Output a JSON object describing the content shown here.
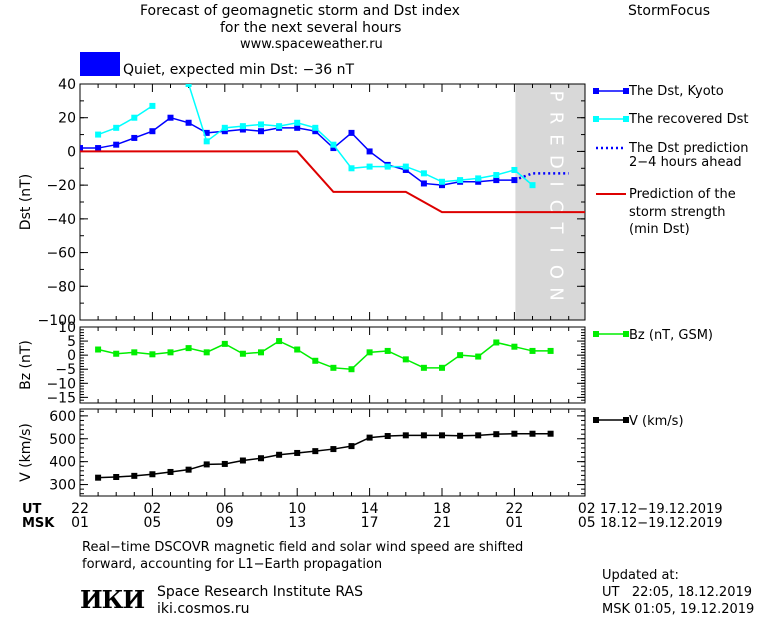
{
  "header": {
    "title_lines": [
      "Forecast of geomagnetic storm and Dst index",
      "for the next several hours",
      "www.spaceweather.ru"
    ],
    "brand": "StormFocus",
    "status_label": "Quiet, expected min Dst: −36 nT",
    "status_color": "#0000ff"
  },
  "colors": {
    "dst_kyoto": "#0000ff",
    "dst_recovered": "#00ffff",
    "dst_prediction_dotted": "#0000ff",
    "storm_strength": "#dd0000",
    "bz": "#00ee00",
    "v": "#000000",
    "prediction_band": "#d8d8d8"
  },
  "time_axis": {
    "ut_label": "UT",
    "msk_label": "MSK",
    "ut_ticks": [
      "22",
      "02",
      "06",
      "10",
      "14",
      "18",
      "22",
      "02"
    ],
    "msk_ticks": [
      "01",
      "05",
      "09",
      "13",
      "17",
      "21",
      "01",
      "05"
    ],
    "ut_range": "17.12−19.12.2019",
    "msk_range": "18.12−19.12.2019"
  },
  "chart_data": [
    {
      "type": "line",
      "panel": "dst",
      "ylabel": "Dst (nT)",
      "ylim": [
        -100,
        40
      ],
      "yticks": [
        "40",
        "20",
        "0",
        "−20",
        "−40",
        "−60",
        "−80",
        "−100"
      ],
      "prediction_text": "PREDICTION",
      "series": [
        {
          "name": "The Dst, Kyoto",
          "x": [
            0,
            1,
            2,
            3,
            4,
            5,
            6,
            7,
            8,
            9,
            10,
            11,
            12,
            13,
            14,
            15,
            16,
            17,
            18,
            19,
            20,
            21,
            22,
            23,
            24
          ],
          "y": [
            2,
            2,
            4,
            8,
            12,
            20,
            17,
            11,
            12,
            13,
            12,
            14,
            14,
            12,
            2,
            11,
            0,
            -8,
            -11,
            -19,
            -20,
            -18,
            -18,
            -17,
            -17
          ]
        },
        {
          "name": "The recovered Dst",
          "x": [
            1,
            2,
            3,
            4,
            6,
            7,
            8,
            9,
            10,
            11,
            12,
            13,
            14,
            15,
            16,
            17,
            18,
            19,
            20,
            21,
            22,
            23,
            24,
            25
          ],
          "y": [
            10,
            14,
            20,
            27,
            40,
            6,
            14,
            15,
            16,
            15,
            17,
            14,
            4,
            -10,
            -9,
            -9,
            -9,
            -13,
            -18,
            -17,
            -16,
            -14,
            -11,
            -20
          ],
          "segments": [
            [
              0,
              3
            ],
            [
              4,
              23
            ]
          ]
        },
        {
          "name": "The Dst prediction 2−4 hours ahead",
          "x": [
            24,
            25,
            26,
            27
          ],
          "y": [
            -17,
            -13,
            -13,
            -13
          ]
        },
        {
          "name": "Prediction of the storm strength (min Dst)",
          "x": [
            -1,
            12,
            14,
            16,
            18,
            20,
            28
          ],
          "y": [
            0,
            0,
            -24,
            -24,
            -24,
            -36,
            -36
          ],
          "step": true
        }
      ],
      "prediction_start_x": 24,
      "legend_labels": [
        "The Dst, Kyoto",
        "The recovered Dst",
        "The Dst prediction",
        "2−4 hours ahead",
        "Prediction of the",
        "storm strength",
        "(min Dst)"
      ]
    },
    {
      "type": "line",
      "panel": "bz",
      "ylabel": "Bz (nT)",
      "ylim": [
        -17,
        10
      ],
      "yticks": [
        "10",
        "5",
        "0",
        "−5",
        "−10",
        "−15"
      ],
      "series": [
        {
          "name": "Bz (nT, GSM)",
          "x": [
            1,
            2,
            3,
            4,
            5,
            6,
            7,
            8,
            9,
            10,
            11,
            12,
            13,
            14,
            15,
            16,
            17,
            18,
            19,
            20,
            21,
            22,
            23,
            24,
            25,
            26
          ],
          "y": [
            2,
            0.5,
            1,
            0.3,
            1,
            2.5,
            1,
            4,
            0.5,
            1,
            5,
            2,
            -2,
            -4.5,
            -5,
            1,
            1.5,
            -1.5,
            -4.5,
            -4.5,
            0,
            -0.5,
            4.5,
            3,
            1.5,
            1.5
          ]
        }
      ]
    },
    {
      "type": "line",
      "panel": "v",
      "ylabel": "V (km/s)",
      "ylim": [
        250,
        630
      ],
      "yticks": [
        "600",
        "500",
        "400",
        "300"
      ],
      "series": [
        {
          "name": "V (km/s)",
          "x": [
            1,
            2,
            3,
            4,
            5,
            6,
            7,
            8,
            9,
            10,
            11,
            12,
            13,
            14,
            15,
            16,
            17,
            18,
            19,
            20,
            21,
            22,
            23,
            24,
            25,
            26
          ],
          "y": [
            330,
            333,
            338,
            345,
            355,
            365,
            388,
            390,
            405,
            415,
            430,
            438,
            446,
            455,
            468,
            505,
            512,
            515,
            515,
            515,
            513,
            515,
            520,
            522,
            522,
            522
          ]
        }
      ]
    }
  ],
  "footer": {
    "note_line1": "Real−time DSCOVR magnetic field and solar wind speed are shifted",
    "note_line2": "forward, accounting for L1−Earth propagation",
    "logo_text": "ИКИ",
    "institute": "Space Research Institute RAS",
    "site": "iki.cosmos.ru",
    "updated_label": "Updated at:",
    "updated_ut": "UT   22:05, 18.12.2019",
    "updated_msk": "MSK 01:05, 19.12.2019"
  }
}
